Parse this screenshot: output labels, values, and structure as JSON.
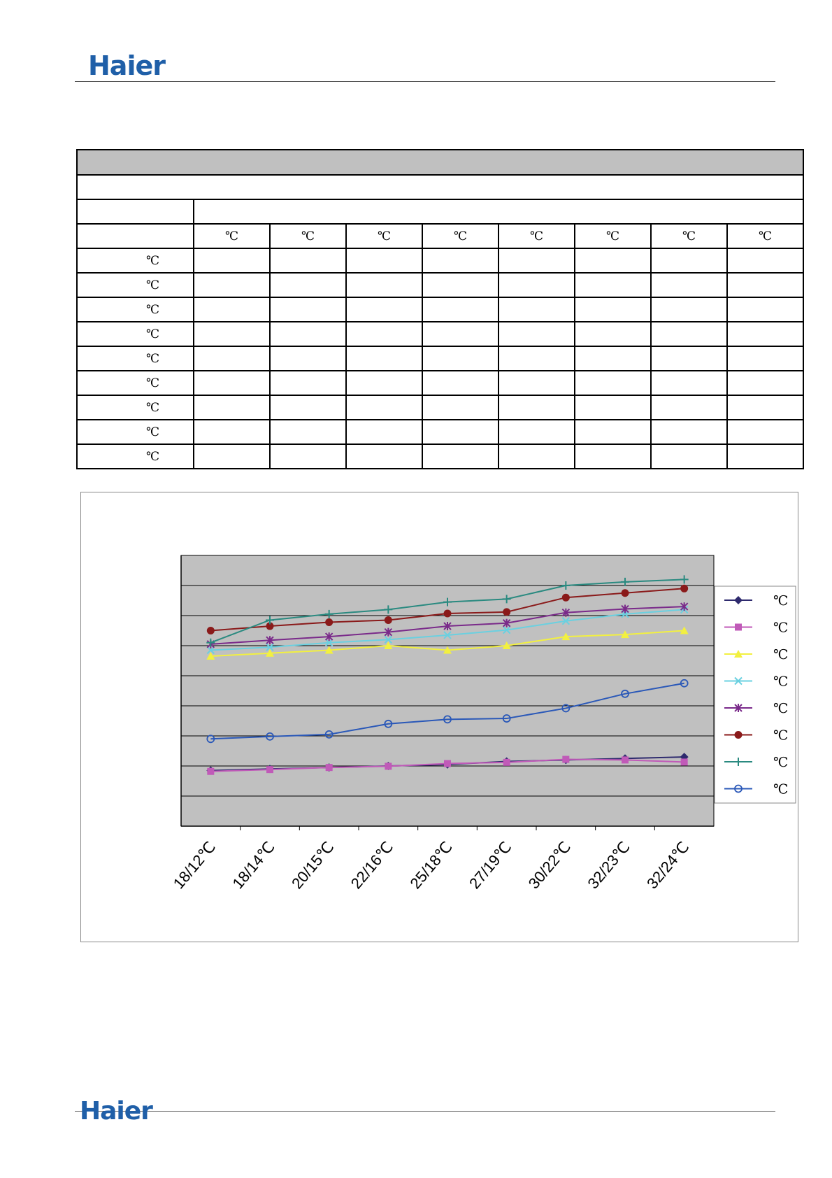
{
  "header": {
    "logo_text": "Haier"
  },
  "footer": {
    "logo_text": "Haier"
  },
  "table": {
    "column_units": [
      "℃",
      "℃",
      "℃",
      "℃",
      "℃",
      "℃",
      "℃",
      "℃"
    ],
    "row_units": [
      "℃",
      "℃",
      "℃",
      "℃",
      "℃",
      "℃",
      "℃",
      "℃",
      "℃"
    ]
  },
  "chart_data": {
    "type": "line",
    "categories": [
      "18/12℃",
      "18/14℃",
      "20/15℃",
      "22/16℃",
      "25/18℃",
      "27/19℃",
      "30/22℃",
      "32/23℃",
      "32/24℃"
    ],
    "ylim": [
      0,
      9
    ],
    "grid": true,
    "legend_position": "right",
    "plot_background": "#c0c0c0",
    "series": [
      {
        "name": "℃",
        "marker": "diamond",
        "color": "#2e2a6e",
        "values": [
          1.85,
          1.9,
          1.95,
          2.0,
          2.05,
          2.15,
          2.2,
          2.25,
          2.3
        ]
      },
      {
        "name": "℃",
        "marker": "square",
        "color": "#c05ab8",
        "values": [
          1.82,
          1.88,
          1.95,
          1.99,
          2.08,
          2.12,
          2.22,
          2.2,
          2.13
        ]
      },
      {
        "name": "℃",
        "marker": "triangle",
        "color": "#f2f040",
        "values": [
          5.65,
          5.75,
          5.85,
          6.0,
          5.85,
          6.0,
          6.3,
          6.37,
          6.5
        ]
      },
      {
        "name": "℃",
        "marker": "x",
        "color": "#6ad0e0",
        "values": [
          5.85,
          5.95,
          6.1,
          6.2,
          6.35,
          6.52,
          6.82,
          7.05,
          7.2
        ]
      },
      {
        "name": "℃",
        "marker": "star",
        "color": "#7a2a8a",
        "values": [
          6.05,
          6.18,
          6.3,
          6.45,
          6.65,
          6.75,
          7.1,
          7.22,
          7.3
        ]
      },
      {
        "name": "℃",
        "marker": "circle",
        "color": "#8a1a1a",
        "values": [
          6.5,
          6.65,
          6.78,
          6.85,
          7.07,
          7.12,
          7.6,
          7.75,
          7.9
        ]
      },
      {
        "name": "℃",
        "marker": "plus",
        "color": "#2a8a80",
        "values": [
          6.1,
          6.85,
          7.05,
          7.2,
          7.45,
          7.55,
          8.0,
          8.12,
          8.2
        ]
      },
      {
        "name": "℃",
        "marker": "open-circle",
        "color": "#2a58b8",
        "values": [
          2.9,
          2.98,
          3.05,
          3.4,
          3.55,
          3.58,
          3.92,
          4.4,
          4.75
        ]
      }
    ]
  }
}
